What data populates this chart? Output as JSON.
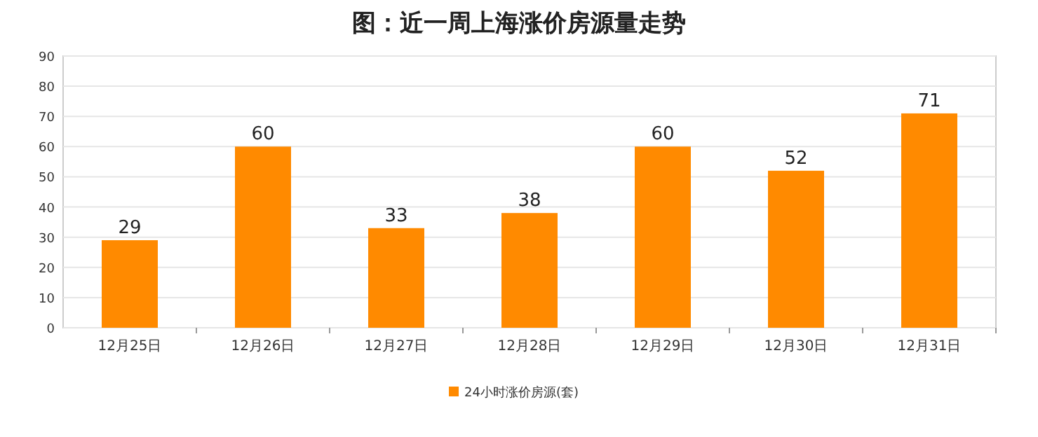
{
  "chart_data": {
    "type": "bar",
    "title": "图：近一周上海涨价房源量走势",
    "categories": [
      "12月25日",
      "12月26日",
      "12月27日",
      "12月28日",
      "12月29日",
      "12月30日",
      "12月31日"
    ],
    "series": [
      {
        "name": "24小时涨价房源(套)",
        "color": "#ff8a00",
        "values": [
          29,
          60,
          33,
          38,
          60,
          52,
          71
        ]
      }
    ],
    "ylim": [
      0,
      90
    ],
    "yticks": [
      0,
      10,
      20,
      30,
      40,
      50,
      60,
      70,
      80,
      90
    ],
    "grid": "y",
    "legend": "bottom",
    "data_labels": true
  }
}
